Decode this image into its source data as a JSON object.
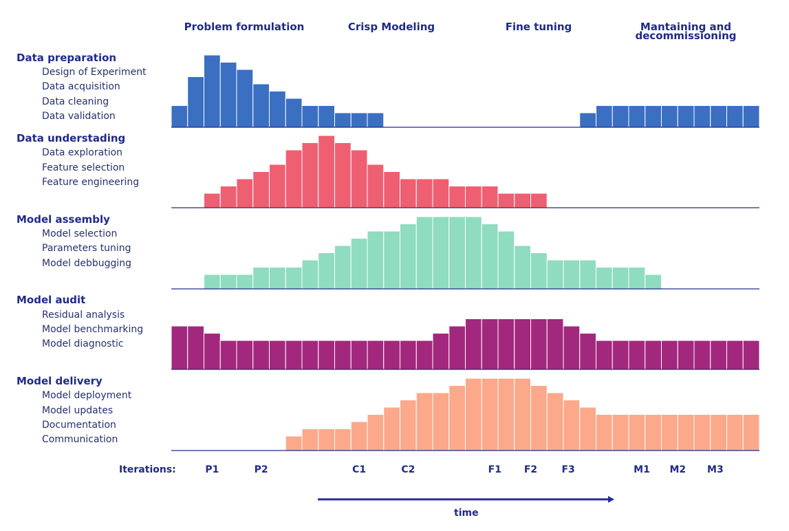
{
  "phases": [
    "Problem formulation",
    "Crisp Modeling",
    "Fine tuning",
    "Mantaining and decommissioning"
  ],
  "colors": {
    "text": "#1f2a8a",
    "axis": "#1f2a8a",
    "series": [
      "#3a6fc2",
      "#ef5f72",
      "#8fdcc0",
      "#a2287e",
      "#fba98a"
    ]
  },
  "chart_data": {
    "type": "bar",
    "title": "",
    "xlabel": "time",
    "ylabel": "",
    "bins": 36,
    "series": [
      {
        "name": "Data preparation",
        "tasks": [
          "Design of Experiment",
          "Data acquisition",
          "Data cleaning",
          "Data validation"
        ],
        "values": [
          3,
          7,
          10,
          9,
          8,
          6,
          5,
          4,
          3,
          3,
          2,
          2,
          2,
          0,
          0,
          0,
          0,
          0,
          0,
          0,
          0,
          0,
          0,
          0,
          0,
          2,
          3,
          3,
          3,
          3,
          3,
          3,
          3,
          3,
          3,
          3
        ]
      },
      {
        "name": "Data understading",
        "tasks": [
          "Data exploration",
          "Feature selection",
          "Feature engineering"
        ],
        "values": [
          0,
          0,
          2,
          3,
          4,
          5,
          6,
          8,
          9,
          10,
          9,
          8,
          6,
          5,
          4,
          4,
          4,
          3,
          3,
          3,
          2,
          2,
          2,
          0,
          0,
          0,
          0,
          0,
          0,
          0,
          0,
          0,
          0,
          0,
          0,
          0
        ]
      },
      {
        "name": "Model assembly",
        "tasks": [
          "Model selection",
          "Parameters tuning",
          "Model debbugging"
        ],
        "values": [
          0,
          0,
          2,
          2,
          2,
          3,
          3,
          3,
          4,
          5,
          6,
          7,
          8,
          8,
          9,
          10,
          10,
          10,
          10,
          9,
          8,
          6,
          5,
          4,
          4,
          4,
          3,
          3,
          3,
          2,
          0,
          0,
          0,
          0,
          0,
          0
        ]
      },
      {
        "name": "Model audit",
        "tasks": [
          "Residual analysis",
          "Model benchmarking",
          "Model diagnostic"
        ],
        "values": [
          6,
          6,
          5,
          4,
          4,
          4,
          4,
          4,
          4,
          4,
          4,
          4,
          4,
          4,
          4,
          4,
          5,
          6,
          7,
          7,
          7,
          7,
          7,
          7,
          6,
          5,
          4,
          4,
          4,
          4,
          4,
          4,
          4,
          4,
          4,
          4
        ]
      },
      {
        "name": "Model delivery",
        "tasks": [
          "Model deployment",
          "Model updates",
          "Documentation",
          "Communication"
        ],
        "values": [
          0,
          0,
          0,
          0,
          0,
          0,
          0,
          2,
          3,
          3,
          3,
          4,
          5,
          6,
          7,
          8,
          8,
          9,
          10,
          10,
          10,
          10,
          9,
          8,
          7,
          6,
          5,
          5,
          5,
          5,
          5,
          5,
          5,
          5,
          5,
          5
        ]
      }
    ],
    "iterations_label": "Iterations:",
    "iterations": [
      {
        "label": "P1",
        "bin": 2.5
      },
      {
        "label": "P2",
        "bin": 5.5
      },
      {
        "label": "C1",
        "bin": 11.5
      },
      {
        "label": "C2",
        "bin": 14.5
      },
      {
        "label": "F1",
        "bin": 19.8
      },
      {
        "label": "F2",
        "bin": 22.0
      },
      {
        "label": "F3",
        "bin": 24.3
      },
      {
        "label": "M1",
        "bin": 28.8
      },
      {
        "label": "M2",
        "bin": 31.0
      },
      {
        "label": "M3",
        "bin": 33.3
      }
    ],
    "time_label": "time"
  }
}
